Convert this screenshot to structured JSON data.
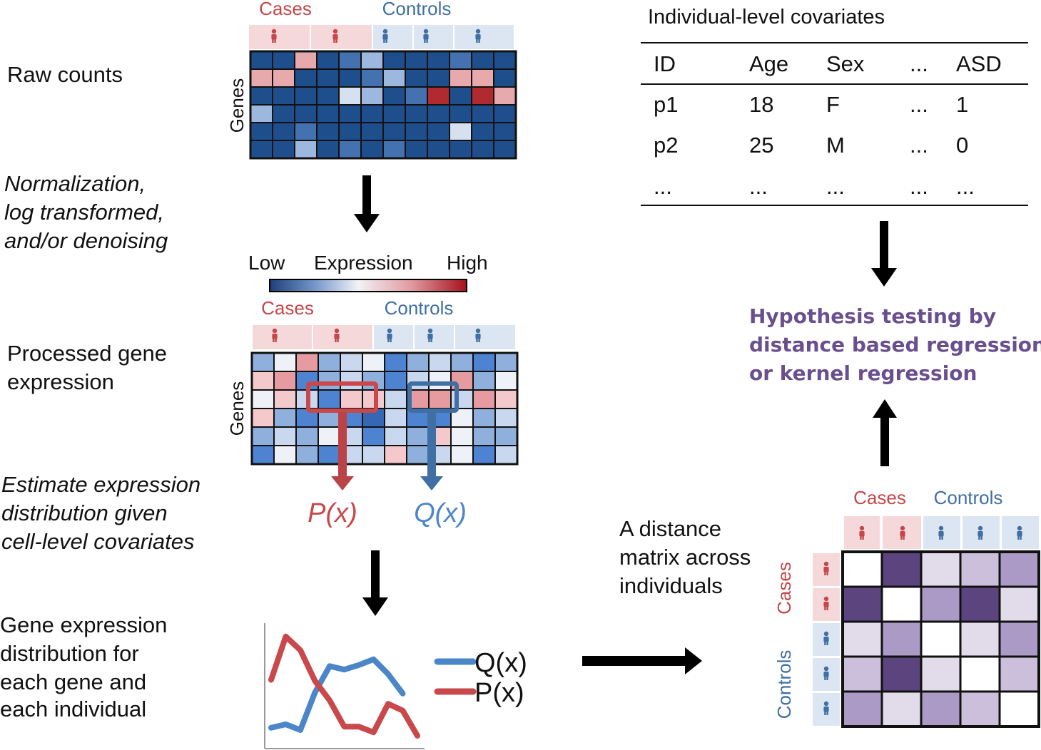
{
  "colors": {
    "case_red": "#c4474b",
    "control_blue": "#3f6fa3",
    "case_bg": "#f5d9da",
    "control_bg": "#dce6f2",
    "raw_cell_dark": "#1f4e8c",
    "purple_text": "#6a4f8e",
    "q_line": "#4a86c8",
    "p_line": "#c8484b"
  },
  "steps": {
    "raw": "Raw counts",
    "norm": [
      "Normalization,",
      "log transformed,",
      "and/or denoising"
    ],
    "processed": [
      "Processed gene",
      "expression"
    ],
    "estimate": [
      "Estimate expression",
      "distribution given",
      "cell-level covariates"
    ],
    "dist": [
      "Gene expression",
      "distribution for",
      "each gene and",
      "each individual"
    ]
  },
  "heatmap_labels": {
    "cases": "Cases",
    "controls": "Controls",
    "genes": "Genes",
    "low": "Low",
    "expression": "Expression",
    "high": "High"
  },
  "px_label": "P(x)",
  "qx_label": "Q(x)",
  "legend": {
    "q": "Q(x)",
    "p": "P(x)"
  },
  "distance_text": [
    "A distance",
    "matrix across",
    "individuals"
  ],
  "hypothesis": [
    "Hypothesis testing by",
    "distance based regression",
    "or kernel regression"
  ],
  "covariates": {
    "title": "Individual-level covariates",
    "headers": [
      "ID",
      "Age",
      "Sex",
      "...",
      "ASD"
    ],
    "rows": [
      [
        "p1",
        "18",
        "F",
        "...",
        "1"
      ],
      [
        "p2",
        "25",
        "M",
        "...",
        "0"
      ],
      [
        "...",
        "...",
        "...",
        "...",
        "..."
      ]
    ]
  },
  "chart_data": {
    "type": "line",
    "x": [
      1,
      2,
      3,
      4,
      5,
      6,
      7,
      8,
      9,
      10
    ],
    "series": [
      {
        "name": "Q(x)",
        "values": [
          1.2,
          1.5,
          1.0,
          4.3,
          6.6,
          6.3,
          6.7,
          7.2,
          5.9,
          4.2
        ]
      },
      {
        "name": "P(x)",
        "values": [
          5.4,
          9.2,
          8.0,
          5.3,
          3.6,
          1.3,
          1.3,
          0.8,
          3.3,
          2.7
        ]
      }
    ],
    "series_extra": [
      {
        "name": "P(x)",
        "x_end": 11,
        "value_end": 0.5
      }
    ],
    "ylim": [
      0,
      10
    ],
    "grid": false,
    "legend": "right"
  }
}
